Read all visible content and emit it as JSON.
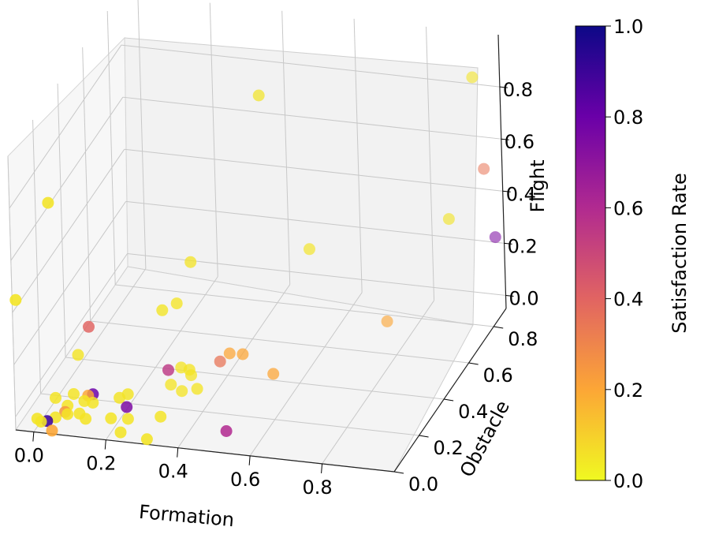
{
  "chart_data": {
    "type": "scatter",
    "projection": "3d",
    "title": "",
    "xlabel": "Formation",
    "ylabel": "Obstacle",
    "zlabel": "Flight",
    "xlim": [
      -0.05,
      1.0
    ],
    "ylim": [
      0.0,
      0.9
    ],
    "zlim": [
      -0.05,
      1.0
    ],
    "x_ticks": [
      "0.0",
      "0.2",
      "0.4",
      "0.6",
      "0.8"
    ],
    "y_ticks": [
      "0.0",
      "0.2",
      "0.4",
      "0.6",
      "0.8"
    ],
    "z_ticks": [
      "0.0",
      "0.2",
      "0.4",
      "0.6",
      "0.8"
    ],
    "grid": true,
    "colormap": "plasma_r",
    "colorbar": {
      "label": "Satisfaction Rate",
      "range": [
        0.0,
        1.0
      ],
      "ticks": [
        "0.0",
        "0.2",
        "0.4",
        "0.6",
        "0.8",
        "1.0"
      ],
      "colors": [
        "#f0f921",
        "#fca636",
        "#e16462",
        "#b12a90",
        "#6a00a8",
        "#0d0887"
      ]
    },
    "points": [
      {
        "x": 0.48,
        "y": 0.48,
        "z": 0.98,
        "c": 0.05
      },
      {
        "x": 0.96,
        "y": 0.8,
        "z": 0.9,
        "c": 0.05
      },
      {
        "x": 0.04,
        "y": 0.05,
        "z": 0.8,
        "c": 0.05
      },
      {
        "x": 0.96,
        "y": 0.87,
        "z": 0.5,
        "c": 0.35
      },
      {
        "x": 0.92,
        "y": 0.7,
        "z": 0.42,
        "c": 0.05
      },
      {
        "x": 0.99,
        "y": 0.86,
        "z": 0.25,
        "c": 0.75
      },
      {
        "x": 0.32,
        "y": 0.36,
        "z": 0.4,
        "c": 0.05
      },
      {
        "x": 0.58,
        "y": 0.56,
        "z": 0.35,
        "c": 0.05
      },
      {
        "x": -0.04,
        "y": 0.0,
        "z": 0.45,
        "c": 0.05
      },
      {
        "x": 0.1,
        "y": 0.17,
        "z": 0.25,
        "c": 0.4
      },
      {
        "x": 0.3,
        "y": 0.3,
        "z": 0.28,
        "c": 0.05
      },
      {
        "x": 0.27,
        "y": 0.27,
        "z": 0.27,
        "c": 0.05
      },
      {
        "x": 0.3,
        "y": 0.22,
        "z": 0.08,
        "c": 0.55
      },
      {
        "x": 0.3,
        "y": 0.32,
        "z": 0.02,
        "c": 0.05
      },
      {
        "x": 0.4,
        "y": 0.42,
        "z": 0.02,
        "c": 0.2
      },
      {
        "x": 0.38,
        "y": 0.4,
        "z": 0.0,
        "c": 0.35
      },
      {
        "x": 0.33,
        "y": 0.3,
        "z": 0.03,
        "c": 0.05
      },
      {
        "x": 0.32,
        "y": 0.34,
        "z": -0.02,
        "c": 0.05
      },
      {
        "x": 0.27,
        "y": 0.32,
        "z": -0.05,
        "c": 0.05
      },
      {
        "x": 0.3,
        "y": 0.32,
        "z": -0.07,
        "c": 0.05
      },
      {
        "x": 0.74,
        "y": 0.7,
        "z": 0.0,
        "c": 0.2
      },
      {
        "x": 0.52,
        "y": 0.42,
        "z": -0.04,
        "c": 0.2
      },
      {
        "x": 0.44,
        "y": 0.41,
        "z": 0.03,
        "c": 0.2
      },
      {
        "x": 0.05,
        "y": 0.22,
        "z": 0.1,
        "c": 0.05
      },
      {
        "x": 0.06,
        "y": 0.15,
        "z": 0.0,
        "c": 0.05
      },
      {
        "x": 0.1,
        "y": 0.15,
        "z": 0.0,
        "c": 0.2
      },
      {
        "x": 0.11,
        "y": 0.16,
        "z": 0.0,
        "c": 0.8
      },
      {
        "x": 0.02,
        "y": 0.12,
        "z": 0.0,
        "c": 0.05
      },
      {
        "x": 0.06,
        "y": 0.1,
        "z": -0.01,
        "c": 0.05
      },
      {
        "x": 0.06,
        "y": 0.08,
        "z": -0.02,
        "c": 0.25
      },
      {
        "x": 0.1,
        "y": 0.12,
        "z": 0.0,
        "c": 0.05
      },
      {
        "x": 0.12,
        "y": 0.13,
        "z": -0.01,
        "c": 0.05
      },
      {
        "x": 0.04,
        "y": 0.06,
        "z": -0.03,
        "c": 0.05
      },
      {
        "x": 0.02,
        "y": 0.05,
        "z": -0.04,
        "c": 0.9
      },
      {
        "x": 0.0,
        "y": 0.03,
        "z": -0.02,
        "c": 0.05
      },
      {
        "x": 0.01,
        "y": 0.03,
        "z": -0.03,
        "c": 0.05
      },
      {
        "x": 0.04,
        "y": 0.03,
        "z": -0.06,
        "c": 0.2
      },
      {
        "x": 0.07,
        "y": 0.07,
        "z": -0.02,
        "c": 0.05
      },
      {
        "x": 0.1,
        "y": 0.08,
        "z": -0.02,
        "c": 0.05
      },
      {
        "x": 0.12,
        "y": 0.07,
        "z": -0.03,
        "c": 0.05
      },
      {
        "x": 0.18,
        "y": 0.17,
        "z": -0.01,
        "c": 0.05
      },
      {
        "x": 0.2,
        "y": 0.18,
        "z": 0.0,
        "c": 0.05
      },
      {
        "x": 0.21,
        "y": 0.14,
        "z": -0.02,
        "c": 0.75
      },
      {
        "x": 0.18,
        "y": 0.1,
        "z": -0.04,
        "c": 0.05
      },
      {
        "x": 0.22,
        "y": 0.12,
        "z": -0.05,
        "c": 0.05
      },
      {
        "x": 0.22,
        "y": 0.06,
        "z": -0.06,
        "c": 0.05
      },
      {
        "x": 0.3,
        "y": 0.15,
        "z": -0.05,
        "c": 0.05
      },
      {
        "x": 0.35,
        "y": 0.3,
        "z": -0.04,
        "c": 0.05
      },
      {
        "x": 0.3,
        "y": 0.04,
        "z": -0.06,
        "c": 0.05
      },
      {
        "x": 0.5,
        "y": 0.1,
        "z": -0.04,
        "c": 0.6
      }
    ]
  }
}
